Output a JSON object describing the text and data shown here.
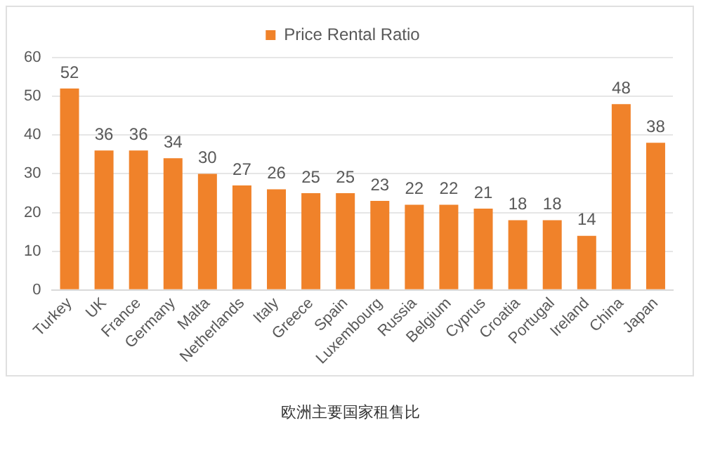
{
  "chart_data": {
    "type": "bar",
    "categories": [
      "Turkey",
      "UK",
      "France",
      "Germany",
      "Malta",
      "Netherlands",
      "Italy",
      "Greece",
      "Spain",
      "Luxembourg",
      "Russia",
      "Belgium",
      "Cyprus",
      "Croatia",
      "Portugal",
      "Ireland",
      "China",
      "Japan"
    ],
    "series": [
      {
        "name": "Price Rental Ratio",
        "color": "#f0822a",
        "values": [
          52,
          36,
          36,
          34,
          30,
          27,
          26,
          25,
          25,
          23,
          22,
          22,
          21,
          18,
          18,
          14,
          48,
          38
        ]
      }
    ],
    "ylim": [
      0,
      60
    ],
    "yticks": [
      0,
      10,
      20,
      30,
      40,
      50,
      60
    ],
    "grid": "y",
    "legend": "top",
    "data_labels": true,
    "annotations": [
      "欧洲主要国家租售比"
    ]
  }
}
